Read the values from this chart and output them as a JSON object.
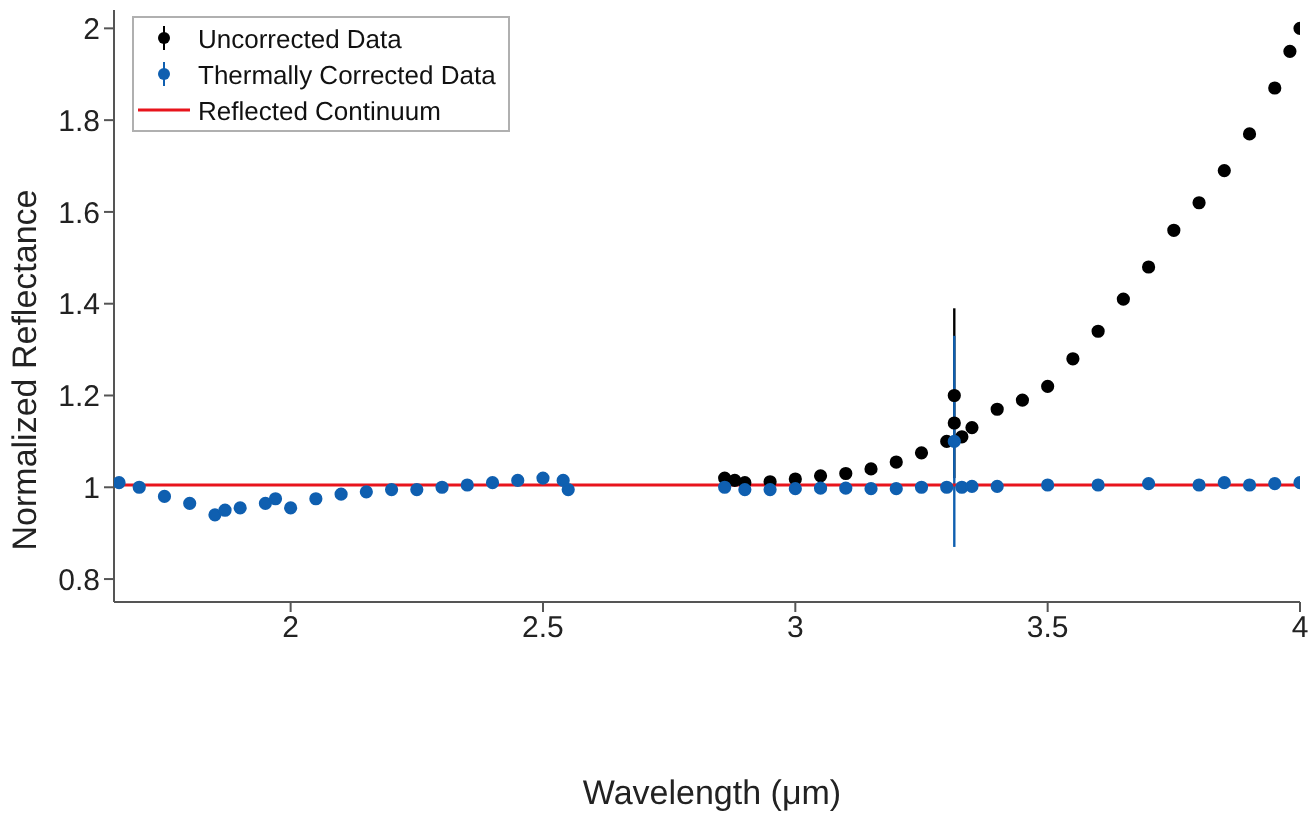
{
  "chart_data": {
    "type": "scatter",
    "xlabel": "Wavelength (μm)",
    "ylabel": "Normalized Reflectance",
    "xlim": [
      1.65,
      4
    ],
    "xticks": [
      2,
      2.5,
      3,
      3.5,
      4
    ],
    "ylim": [
      0.75,
      2.04
    ],
    "yticks": [
      0.8,
      1,
      1.2,
      1.4,
      1.6,
      1.8,
      2
    ],
    "legend": "top left",
    "marker": "circle",
    "series": [
      {
        "name": "Uncorrected Data",
        "color": "#000000",
        "x": [
          2.86,
          2.88,
          2.9,
          2.95,
          3.0,
          3.05,
          3.1,
          3.15,
          3.2,
          3.25,
          3.3,
          3.315,
          3.315,
          3.33,
          3.35,
          3.4,
          3.45,
          3.5,
          3.55,
          3.6,
          3.65,
          3.7,
          3.75,
          3.8,
          3.85,
          3.9,
          3.95,
          3.98,
          4.0
        ],
        "values": [
          1.02,
          1.015,
          1.01,
          1.012,
          1.018,
          1.025,
          1.03,
          1.04,
          1.055,
          1.075,
          1.1,
          1.2,
          1.14,
          1.11,
          1.13,
          1.17,
          1.19,
          1.22,
          1.28,
          1.34,
          1.41,
          1.48,
          1.56,
          1.62,
          1.69,
          1.77,
          1.87,
          1.95,
          2.0
        ],
        "errors": [
          null,
          null,
          null,
          null,
          null,
          null,
          null,
          null,
          null,
          null,
          null,
          [
            1.02,
            1.39
          ],
          null,
          null,
          null,
          null,
          null,
          null,
          null,
          null,
          null,
          null,
          null,
          null,
          null,
          null,
          null,
          null,
          null
        ]
      },
      {
        "name": "Thermally Corrected Data",
        "color": "#0f5fb0",
        "x": [
          1.66,
          1.7,
          1.75,
          1.8,
          1.85,
          1.87,
          1.9,
          1.95,
          1.97,
          2.0,
          2.05,
          2.1,
          2.15,
          2.2,
          2.25,
          2.3,
          2.35,
          2.4,
          2.45,
          2.5,
          2.54,
          2.55,
          2.86,
          2.9,
          2.95,
          3.0,
          3.05,
          3.1,
          3.15,
          3.2,
          3.25,
          3.3,
          3.315,
          3.33,
          3.35,
          3.4,
          3.5,
          3.6,
          3.7,
          3.8,
          3.85,
          3.9,
          3.95,
          4.0
        ],
        "values": [
          1.01,
          1.0,
          0.98,
          0.965,
          0.94,
          0.95,
          0.955,
          0.965,
          0.975,
          0.955,
          0.975,
          0.985,
          0.99,
          0.995,
          0.995,
          1.0,
          1.005,
          1.01,
          1.015,
          1.02,
          1.015,
          0.995,
          1.0,
          0.995,
          0.995,
          0.997,
          0.998,
          0.998,
          0.997,
          0.997,
          1.0,
          1.0,
          1.1,
          1.0,
          1.002,
          1.002,
          1.005,
          1.005,
          1.008,
          1.005,
          1.01,
          1.005,
          1.008,
          1.01
        ],
        "errors": [
          null,
          null,
          null,
          null,
          null,
          null,
          null,
          null,
          null,
          null,
          null,
          null,
          null,
          null,
          null,
          null,
          null,
          null,
          null,
          null,
          null,
          null,
          null,
          null,
          null,
          null,
          null,
          null,
          null,
          null,
          null,
          null,
          [
            0.87,
            1.33
          ],
          null,
          null,
          null,
          null,
          null,
          null,
          null,
          null,
          null,
          null,
          null
        ]
      },
      {
        "name": "Reflected Continuum",
        "type": "line",
        "marker": "none",
        "color": "#e8141c",
        "x": [
          1.65,
          4
        ],
        "values": [
          1.005,
          1.005
        ]
      }
    ]
  }
}
